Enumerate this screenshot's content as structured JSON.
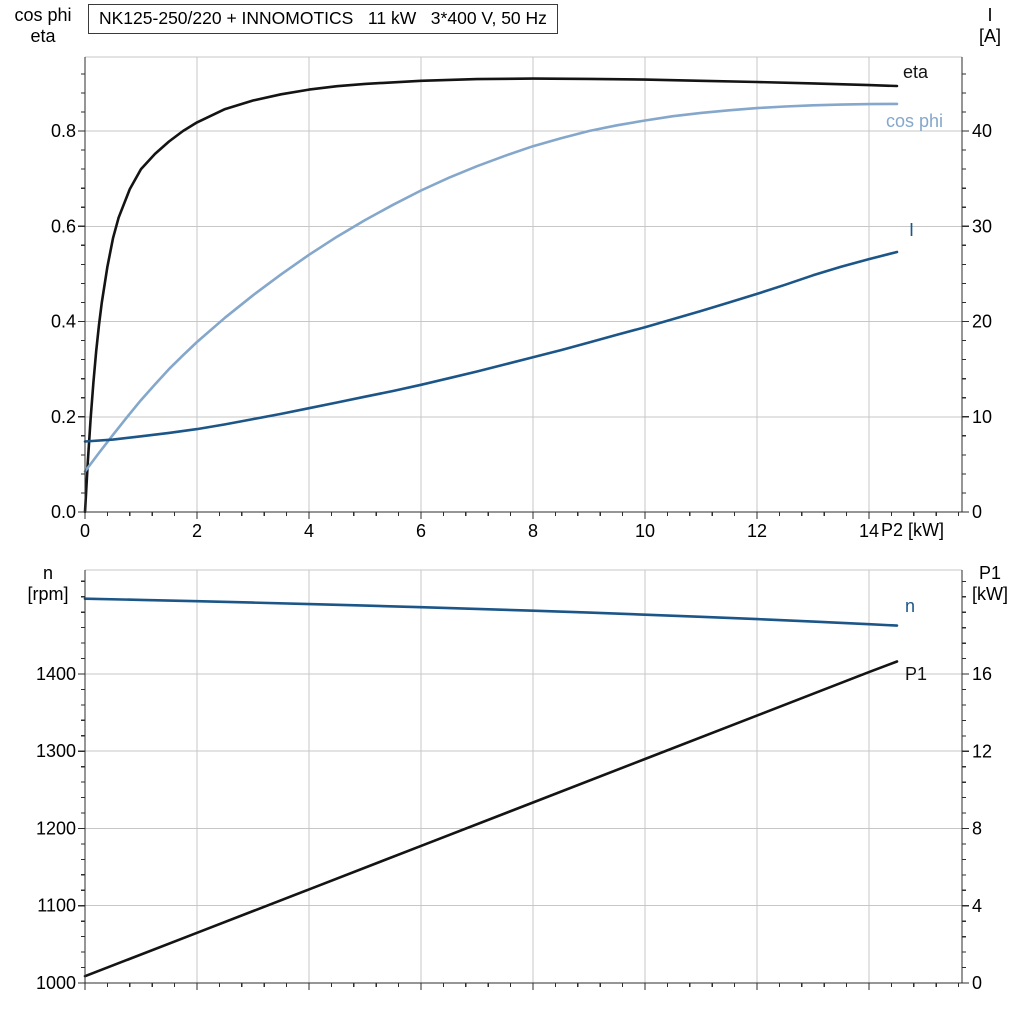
{
  "header": {
    "title": "NK125-250/220 + INNOMOTICS   11 kW   3*400 V, 50 Hz"
  },
  "colors": {
    "eta": "#141414",
    "cos_phi": "#84a7cb",
    "current": "#1c5688",
    "speed": "#1c5688",
    "p1": "#141414",
    "grid": "#c7c7c7",
    "axis": "#2e2e2e",
    "text": "#000000",
    "background": "#ffffff"
  },
  "top_chart": {
    "left_axis_title_line1": "cos phi",
    "left_axis_title_line2": "eta",
    "right_axis_title_line1": "I",
    "right_axis_title_line2": "[A]",
    "x_axis_title": "P2 [kW]",
    "label_eta": "eta",
    "label_cos_phi": "cos phi",
    "label_current": "I"
  },
  "bottom_chart": {
    "left_axis_title_line1": "n",
    "left_axis_title_line2": "[rpm]",
    "right_axis_title_line1": "P1",
    "right_axis_title_line2": "[kW]",
    "label_speed": "n",
    "label_p1": "P1"
  },
  "chart_data": [
    {
      "type": "line",
      "title": "Motor efficiency, power factor and current vs shaft power P2",
      "xlabel": "P2 [kW]",
      "xlim": [
        0,
        15.66
      ],
      "x_tick_values": [
        0,
        2,
        4,
        6,
        8,
        10,
        12,
        14
      ],
      "x_tick_labels": [
        "0",
        "2",
        "4",
        "6",
        "8",
        "10",
        "12",
        "14"
      ],
      "x_minor_step": 0.4,
      "show_x_labels": true,
      "grid": true,
      "legend_position": "right-edge-labels",
      "left_axis": {
        "title": "cos phi / eta",
        "lim": [
          0,
          0.9554
        ],
        "tick_values": [
          0,
          0.2,
          0.4,
          0.6,
          0.8
        ],
        "tick_labels": [
          "0.0",
          "0.2",
          "0.4",
          "0.6",
          "0.8"
        ],
        "minor_step": 0.04
      },
      "right_axis": {
        "title": "I [A]",
        "lim": [
          0,
          47.77
        ],
        "tick_values": [
          0,
          10,
          20,
          30,
          40
        ],
        "tick_labels": [
          "0",
          "10",
          "20",
          "30",
          "40"
        ],
        "minor_step": 2
      },
      "series": [
        {
          "name": "eta",
          "axis": "left",
          "color": "#141414",
          "x": [
            0,
            0.05,
            0.1,
            0.15,
            0.2,
            0.25,
            0.3,
            0.4,
            0.5,
            0.6,
            0.8,
            1,
            1.25,
            1.5,
            1.75,
            2,
            2.5,
            3,
            3.5,
            4,
            4.5,
            5,
            6,
            7,
            8,
            9,
            10,
            11,
            12,
            13,
            14,
            14.5
          ],
          "y": [
            0,
            0.105,
            0.195,
            0.272,
            0.338,
            0.393,
            0.44,
            0.515,
            0.575,
            0.618,
            0.678,
            0.72,
            0.752,
            0.778,
            0.8,
            0.818,
            0.846,
            0.864,
            0.877,
            0.887,
            0.894,
            0.899,
            0.9055,
            0.909,
            0.91,
            0.9095,
            0.908,
            0.9055,
            0.903,
            0.9,
            0.8965,
            0.8945
          ]
        },
        {
          "name": "cos phi",
          "axis": "left",
          "color": "#84a7cb",
          "x": [
            0,
            0.25,
            0.5,
            0.75,
            1,
            1.25,
            1.5,
            1.75,
            2,
            2.5,
            3,
            3.5,
            4,
            4.5,
            5,
            5.5,
            6,
            6.5,
            7,
            7.5,
            8,
            8.5,
            9,
            9.5,
            10,
            10.5,
            11,
            11.5,
            12,
            12.5,
            13,
            13.5,
            14,
            14.5
          ],
          "y": [
            0.085,
            0.124,
            0.162,
            0.199,
            0.235,
            0.268,
            0.3,
            0.329,
            0.357,
            0.408,
            0.455,
            0.499,
            0.54,
            0.578,
            0.613,
            0.645,
            0.675,
            0.702,
            0.726,
            0.748,
            0.768,
            0.785,
            0.8,
            0.812,
            0.822,
            0.831,
            0.838,
            0.8435,
            0.848,
            0.8515,
            0.854,
            0.8555,
            0.8565,
            0.857
          ]
        },
        {
          "name": "I",
          "axis": "right",
          "color": "#1c5688",
          "x": [
            0,
            0.5,
            1,
            1.5,
            2,
            2.5,
            3,
            3.5,
            4,
            4.5,
            5,
            5.5,
            6,
            6.5,
            7,
            7.5,
            8,
            8.5,
            9,
            9.5,
            10,
            10.5,
            11,
            11.5,
            12,
            12.5,
            13,
            13.5,
            14,
            14.5
          ],
          "y": [
            7.4,
            7.6,
            7.95,
            8.3,
            8.7,
            9.2,
            9.75,
            10.3,
            10.9,
            11.5,
            12.1,
            12.7,
            13.35,
            14.05,
            14.75,
            15.5,
            16.25,
            17.0,
            17.8,
            18.6,
            19.4,
            20.25,
            21.1,
            22.0,
            22.9,
            23.85,
            24.85,
            25.75,
            26.55,
            27.3
          ]
        }
      ]
    },
    {
      "type": "line",
      "title": "Speed n and input power P1 vs shaft power P2",
      "xlabel": "",
      "xlim": [
        0,
        15.66
      ],
      "x_tick_values": [
        0,
        2,
        4,
        6,
        8,
        10,
        12,
        14
      ],
      "x_tick_labels": [
        "0",
        "2",
        "4",
        "6",
        "8",
        "10",
        "12",
        "14"
      ],
      "x_minor_step": 0.4,
      "show_x_labels": false,
      "grid": true,
      "legend_position": "right-edge-labels",
      "left_axis": {
        "title": "n [rpm]",
        "lim": [
          1000,
          1534.6
        ],
        "tick_values": [
          1000,
          1100,
          1200,
          1300,
          1400
        ],
        "tick_labels": [
          "1000",
          "1100",
          "1200",
          "1300",
          "1400"
        ],
        "minor_step": 20
      },
      "right_axis": {
        "title": "P1 [kW]",
        "lim": [
          0,
          21.39
        ],
        "tick_values": [
          0,
          4,
          8,
          12,
          16
        ],
        "tick_labels": [
          "0",
          "4",
          "8",
          "12",
          "16"
        ],
        "minor_step": 0.8
      },
      "series": [
        {
          "name": "n",
          "axis": "left",
          "color": "#1c5688",
          "x": [
            0,
            1,
            2,
            3,
            4,
            5,
            6,
            7,
            8,
            9,
            10,
            11,
            12,
            13,
            14,
            14.5
          ],
          "y": [
            1497.5,
            1495.9,
            1494.2,
            1492.4,
            1490.5,
            1488.5,
            1486.4,
            1484.2,
            1481.9,
            1479.4,
            1476.8,
            1474.0,
            1471.0,
            1467.8,
            1464.4,
            1462.6
          ]
        },
        {
          "name": "P1",
          "axis": "right",
          "color": "#141414",
          "x": [
            0,
            2,
            4,
            6,
            8,
            10,
            12,
            14,
            14.5
          ],
          "y": [
            0.35,
            2.6,
            4.85,
            7.1,
            9.35,
            11.6,
            13.85,
            16.1,
            16.65
          ]
        }
      ]
    }
  ]
}
